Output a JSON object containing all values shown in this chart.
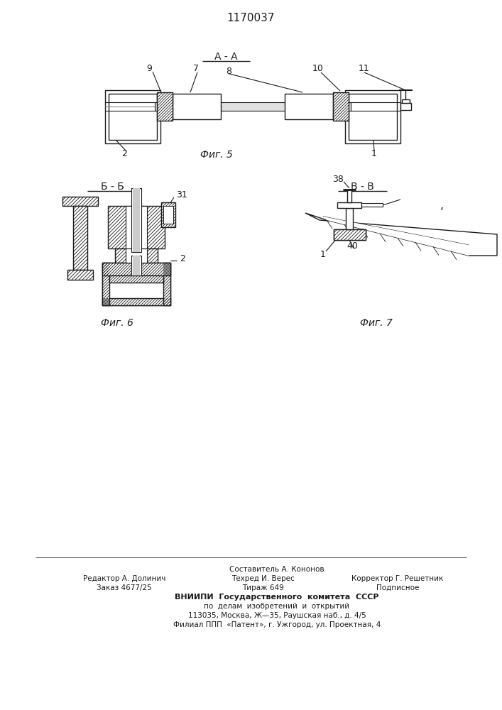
{
  "title": "1170037",
  "bg_color": "#ffffff",
  "line_color": "#1a1a1a",
  "fig5_label": "А - А",
  "fig5_caption": "Фиг. 5",
  "fig6_label": "Б - Б",
  "fig6_caption": "Фиг. 6",
  "fig7_label": "В - В",
  "fig7_caption": "Фиг. 7",
  "footer_line0": "Составитель А. Кононов",
  "footer_line1_left": "Редактор А. Долинич",
  "footer_line1_mid": "Техред И. Верес",
  "footer_line1_right": "Корректор Г. Решетник",
  "footer_line2_left": "Заказ 4677/25",
  "footer_line2_mid": "Тираж 649",
  "footer_line2_right": "Подписное",
  "footer_line3": "ВНИИПИ  Государственного  комитета  СССР",
  "footer_line4": "по  делам  изобретений  и  открытий",
  "footer_line5": "113035, Москва, Ж—35, Раушская наб., д. 4/5",
  "footer_line6": "Филиал ППП  «Патент», г. Ужгород, ул. Проектная, 4"
}
